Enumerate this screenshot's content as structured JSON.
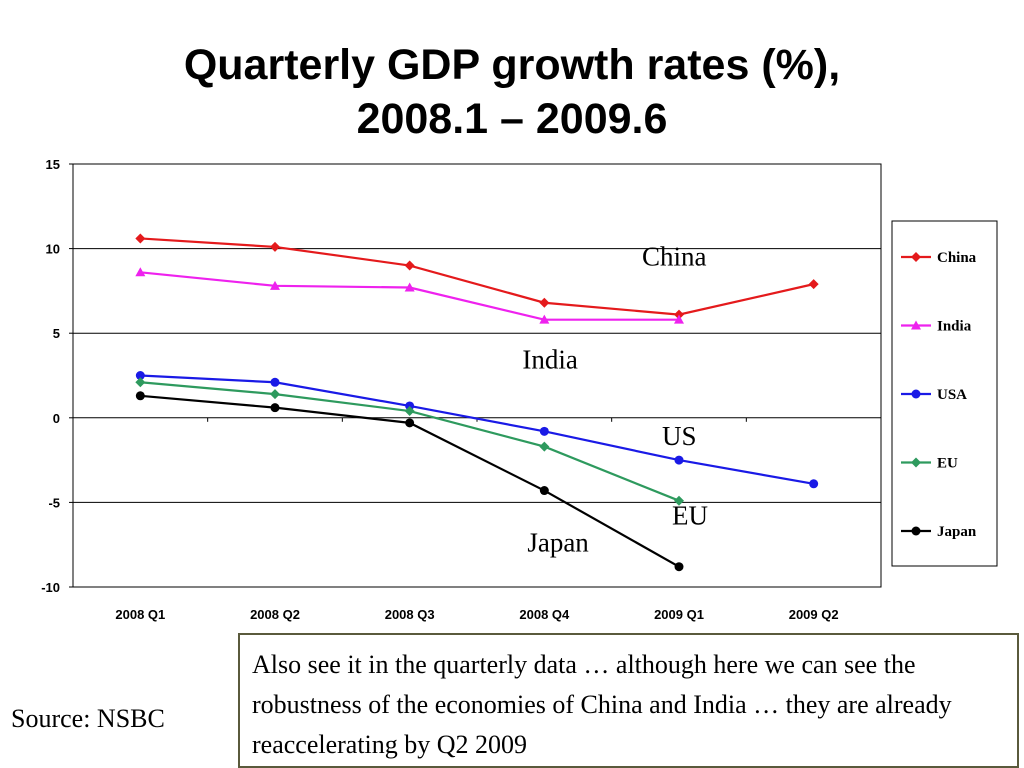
{
  "title": {
    "line1": "Quarterly GDP growth rates (%),",
    "line2": "2008.1 – 2009.6"
  },
  "source": "Source: NSBC",
  "note": "Also see it in the quarterly data … although here we can see the robustness of the economies of China and India … they are already reaccelerating by Q2 2009",
  "chart_data": {
    "type": "line",
    "title": "Quarterly GDP growth rates (%), 2008.1 – 2009.6",
    "xlabel": "",
    "ylabel": "",
    "categories": [
      "2008 Q1",
      "2008 Q2",
      "2008 Q3",
      "2008 Q4",
      "2009 Q1",
      "2009 Q2"
    ],
    "ylim": [
      -10,
      15
    ],
    "yticks": [
      15,
      10,
      5,
      0,
      -5,
      -10
    ],
    "ytick_labels": [
      "15",
      "10",
      "5",
      "0",
      "-5",
      "-10"
    ],
    "grid": "horizontal",
    "legend_position": "right",
    "series": [
      {
        "name": "China",
        "color": "#e41a1c",
        "marker": "diamond",
        "values": [
          10.6,
          10.1,
          9.0,
          6.8,
          6.1,
          7.9
        ]
      },
      {
        "name": "India",
        "color": "#ee22ee",
        "marker": "triangle",
        "values": [
          8.6,
          7.8,
          7.7,
          5.8,
          5.8,
          null
        ]
      },
      {
        "name": "USA",
        "color": "#1a1ae6",
        "marker": "circle",
        "values": [
          2.5,
          2.1,
          0.7,
          -0.8,
          -2.5,
          -3.9
        ]
      },
      {
        "name": "EU",
        "color": "#2e9a5e",
        "marker": "diamond",
        "values": [
          2.1,
          1.4,
          0.4,
          -1.7,
          -4.9,
          null
        ]
      },
      {
        "name": "Japan",
        "color": "#000000",
        "marker": "circle",
        "values": [
          1.3,
          0.6,
          -0.3,
          -4.3,
          -8.8,
          null
        ]
      }
    ],
    "annotations": [
      {
        "text": "China",
        "near": "2009 Q1",
        "value": 9.0
      },
      {
        "text": "India",
        "near": "2008 Q4",
        "value": 2.9
      },
      {
        "text": "US",
        "near": "2009 Q1",
        "value": -1.6
      },
      {
        "text": "EU",
        "near": "2009 Q1",
        "value": -6.3
      },
      {
        "text": "Japan",
        "near": "2008 Q4",
        "value": -7.9
      }
    ]
  }
}
